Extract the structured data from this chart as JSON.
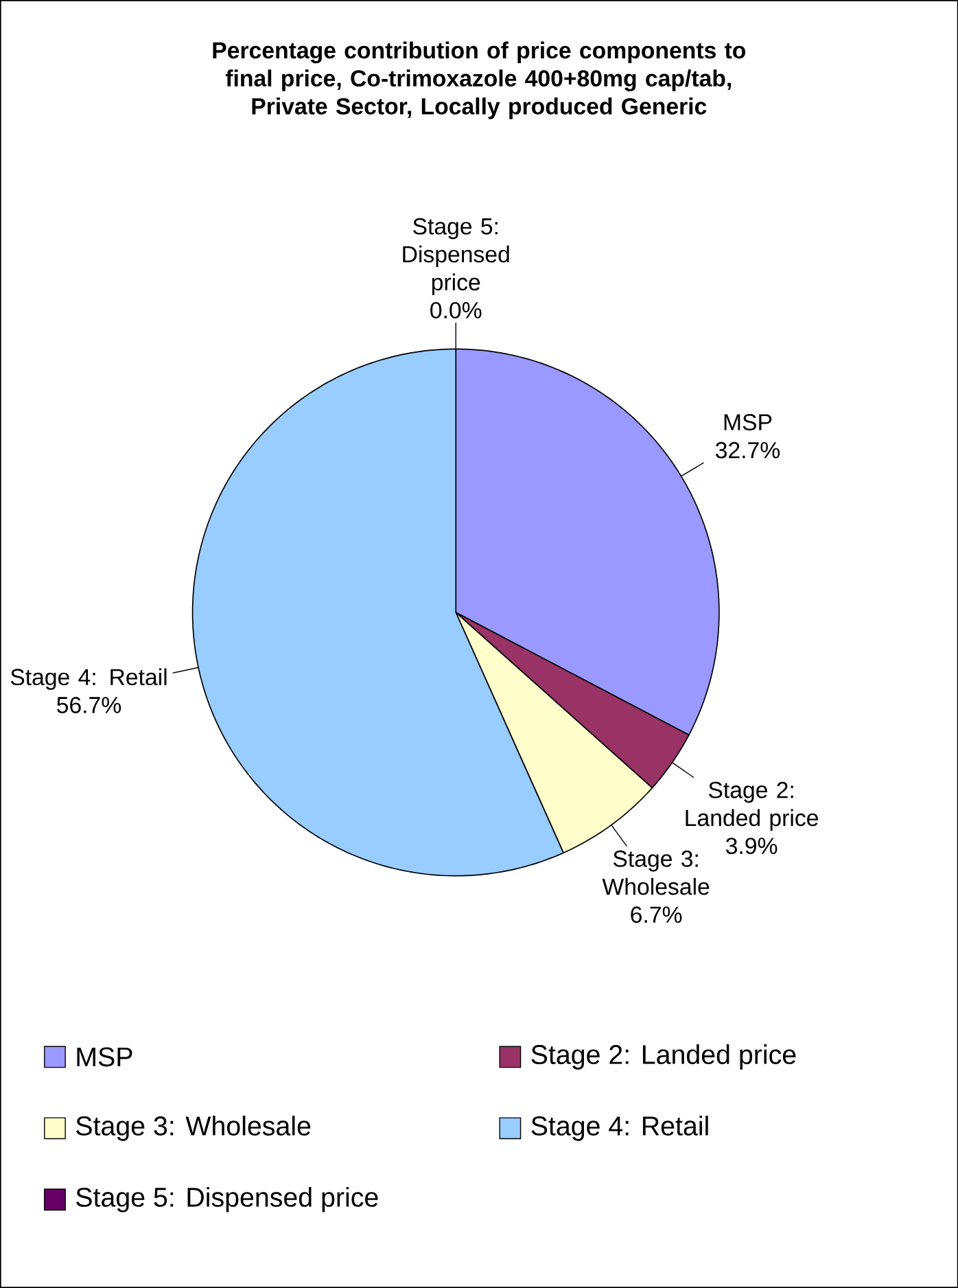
{
  "chart_data": {
    "type": "pie",
    "title": "Percentage contribution of price components to final price, Co-trimoxazole 400+80mg cap/tab, Private Sector, Locally produced Generic",
    "categories": [
      "MSP",
      "Stage 2: Landed price",
      "Stage 3: Wholesale",
      "Stage 4: Retail",
      "Stage 5: Dispensed price"
    ],
    "values": [
      32.7,
      3.9,
      6.7,
      56.7,
      0.0
    ],
    "value_labels": [
      "32.7%",
      "3.9%",
      "6.7%",
      "56.7%",
      "0.0%"
    ],
    "colors": [
      "#9999ff",
      "#993366",
      "#ffffcc",
      "#99ccff",
      "#660066"
    ],
    "legend": "bottom"
  }
}
